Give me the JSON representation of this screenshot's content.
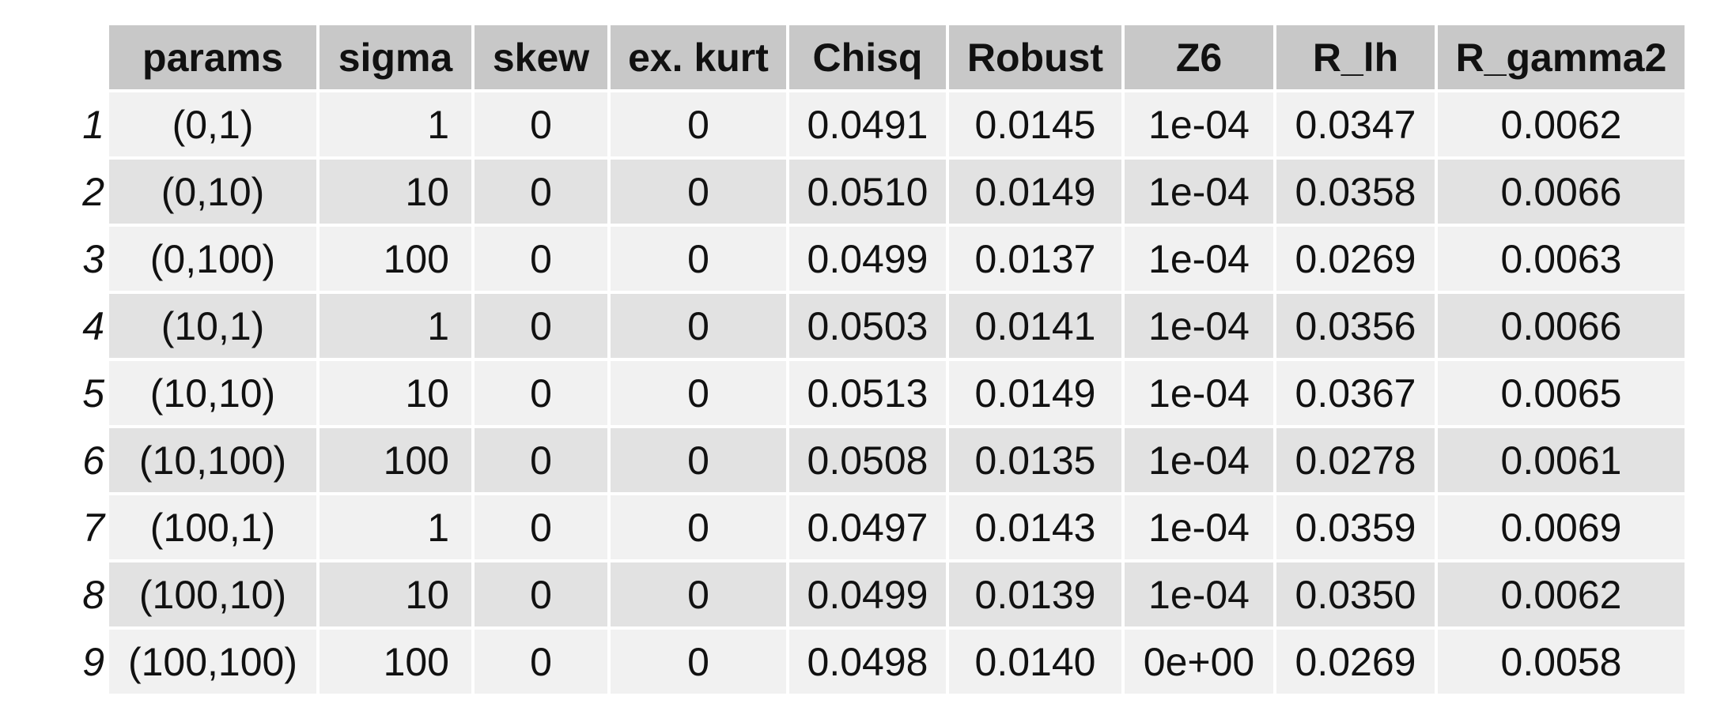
{
  "table": {
    "headers": [
      "",
      "params",
      "sigma",
      "skew",
      "ex. kurt",
      "Chisq",
      "Robust",
      "Z6",
      "R_lh",
      "R_gamma2"
    ],
    "rows": [
      [
        "1",
        "(0,1)",
        "1",
        "0",
        "0",
        "0.0491",
        "0.0145",
        "1e-04",
        "0.0347",
        "0.0062"
      ],
      [
        "2",
        "(0,10)",
        "10",
        "0",
        "0",
        "0.0510",
        "0.0149",
        "1e-04",
        "0.0358",
        "0.0066"
      ],
      [
        "3",
        "(0,100)",
        "100",
        "0",
        "0",
        "0.0499",
        "0.0137",
        "1e-04",
        "0.0269",
        "0.0063"
      ],
      [
        "4",
        "(10,1)",
        "1",
        "0",
        "0",
        "0.0503",
        "0.0141",
        "1e-04",
        "0.0356",
        "0.0066"
      ],
      [
        "5",
        "(10,10)",
        "10",
        "0",
        "0",
        "0.0513",
        "0.0149",
        "1e-04",
        "0.0367",
        "0.0065"
      ],
      [
        "6",
        "(10,100)",
        "100",
        "0",
        "0",
        "0.0508",
        "0.0135",
        "1e-04",
        "0.0278",
        "0.0061"
      ],
      [
        "7",
        "(100,1)",
        "1",
        "0",
        "0",
        "0.0497",
        "0.0143",
        "1e-04",
        "0.0359",
        "0.0069"
      ],
      [
        "8",
        "(100,10)",
        "10",
        "0",
        "0",
        "0.0499",
        "0.0139",
        "1e-04",
        "0.0350",
        "0.0062"
      ],
      [
        "9",
        "(100,100)",
        "100",
        "0",
        "0",
        "0.0498",
        "0.0140",
        "0e+00",
        "0.0269",
        "0.0058"
      ]
    ]
  }
}
